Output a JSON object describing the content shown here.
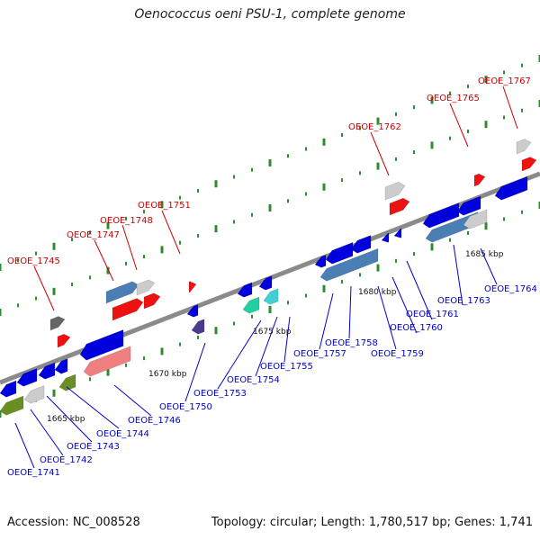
{
  "title": "Oenococcus oeni PSU-1, complete genome",
  "footer": {
    "accession": "Accession: NC_008528",
    "summary": "Topology: circular; Length: 1,780,517 bp; Genes: 1,741"
  },
  "colors": {
    "forward_label": "#cc0000",
    "reverse_label": "#0000cc",
    "axis": "#888888",
    "tick": "#2e8b2e"
  },
  "scale_labels": [
    "1665 kbp",
    "1670 kbp",
    "1675 kbp",
    "1680 kbp",
    "1685 kbp"
  ],
  "forward_genes": [
    "OEOE_1745",
    "OEOE_1747",
    "OEOE_1748",
    "OEOE_1751",
    "OEOE_1762",
    "OEOE_1765",
    "OEOE_1767"
  ],
  "reverse_genes": [
    "OEOE_1741",
    "OEOE_1742",
    "OEOE_1743",
    "OEOE_1744",
    "OEOE_1746",
    "OEOE_1750",
    "OEOE_1753",
    "OEOE_1754",
    "OEOE_1755",
    "OEOE_1757",
    "OEOE_1758",
    "OEOE_1759",
    "OEOE_1760",
    "OEOE_1761",
    "OEOE_1763",
    "OEOE_1764"
  ]
}
